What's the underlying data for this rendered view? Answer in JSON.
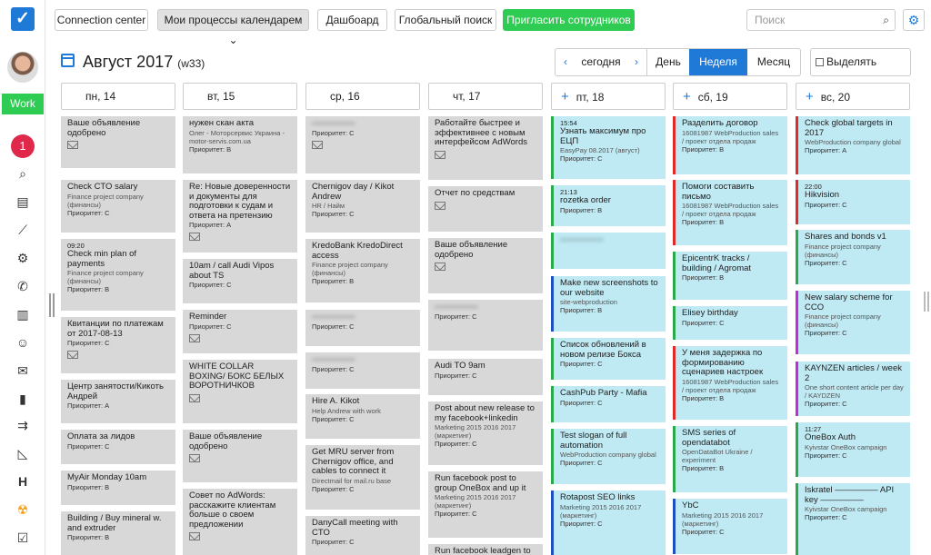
{
  "nav": {
    "work_label": "Work",
    "notifications": "1",
    "icons": [
      "search-icon",
      "calendar-icon",
      "chart-icon",
      "settings-icon",
      "phone-icon",
      "barcode-icon",
      "users-icon",
      "mail-icon",
      "document-icon",
      "flow-icon",
      "triangle-icon",
      "header-icon",
      "nuclear-icon",
      "task-icon"
    ]
  },
  "topbar": {
    "b1": "Connection center",
    "b2": "Мои процессы календарем ⌄",
    "b3": "Дашбоард",
    "b4": "Глобальный поиск",
    "b5": "Пригласить сотрудников",
    "search_placeholder": "Поиск"
  },
  "header": {
    "month": "Август 2017",
    "week": "(w33)",
    "today": "сегодня",
    "day": "День",
    "week_btn": "Неделя",
    "month_btn": "Месяц",
    "show_tasks": "Выделять задачи"
  },
  "days": [
    {
      "label": "пн, 14"
    },
    {
      "label": "вт, 15"
    },
    {
      "label": "ср, 16"
    },
    {
      "label": "чт, 17"
    },
    {
      "label": "пт, 18"
    },
    {
      "label": "сб, 19"
    },
    {
      "label": "вс, 20"
    }
  ],
  "colors": {
    "accent": "#1e7ad6",
    "green": "#2ecc52",
    "card_grey": "#d8d8d8",
    "card_blue": "#bfe9f3"
  },
  "events": [
    {
      "d": 0,
      "title": "Ваше объявление одобрено",
      "sub": "",
      "pri": "",
      "mail": true
    },
    {
      "d": 0,
      "title": "Check CTO salary",
      "sub": "Finance project company (финансы)",
      "pri": "Приоритет: С"
    },
    {
      "d": 0,
      "time": "09:20",
      "title": "Check min plan of payments",
      "sub": "Finance project company (финансы)",
      "pri": "Приоритет: В"
    },
    {
      "d": 0,
      "title": "Квитанции по платежам от 2017-08-13",
      "sub": "",
      "pri": "Приоритет: С",
      "mail": true
    },
    {
      "d": 0,
      "title": "Центр занятости/Кикоть Андрей",
      "sub": "",
      "pri": "Приоритет: А"
    },
    {
      "d": 0,
      "title": "Оплата за лидов",
      "sub": "",
      "pri": "Приоритет: С"
    },
    {
      "d": 0,
      "title": "MyAir Monday 10am",
      "sub": "",
      "pri": "Приоритет: В"
    },
    {
      "d": 0,
      "title": "Building / Buy mineral w. and extruder",
      "sub": "",
      "pri": "Приоритет: В"
    },
    {
      "d": 1,
      "title": "нужен скан акта",
      "sub": "Олег - Моторсервис Украина - motor-servis.com.ua",
      "pri": "Приоритет: В"
    },
    {
      "d": 1,
      "title": "Re: Новые доверенности и документы для подготовки к судам и ответа на претензию",
      "sub": "",
      "pri": "Приоритет: А",
      "mail": true
    },
    {
      "d": 1,
      "title": "10am / call Audi Vipos about TS",
      "sub": "",
      "pri": "Приоритет: С"
    },
    {
      "d": 1,
      "title": "Reminder",
      "sub": "",
      "pri": "Приоритет: С",
      "mail": true
    },
    {
      "d": 1,
      "title": "WHITE COLLAR BOXING/ БОКС БЕЛЫХ ВОРОТНИЧКОВ",
      "sub": "",
      "pri": "",
      "mail": true
    },
    {
      "d": 1,
      "title": "Ваше объявление одобрено",
      "sub": "",
      "pri": "",
      "mail": true
    },
    {
      "d": 1,
      "title": "Совет по AdWords: расскажите клиентам больше о своем предложении",
      "sub": "",
      "pri": "",
      "mail": true
    },
    {
      "d": 2,
      "blur": true,
      "title": "—————",
      "sub": "",
      "pri": "Приоритет: С",
      "mail": true
    },
    {
      "d": 2,
      "title": "Chernigov day / Kikot Andrew",
      "sub": "HR / Найм",
      "pri": "Приоритет: С"
    },
    {
      "d": 2,
      "title": "KredoBank KredoDirect access",
      "sub": "Finance project company (финансы)",
      "pri": "Приоритет: В"
    },
    {
      "d": 2,
      "blur": true,
      "title": "—————",
      "sub": "",
      "pri": "Приоритет: С"
    },
    {
      "d": 2,
      "blur": true,
      "title": "—————",
      "sub": "",
      "pri": "Приоритет: С"
    },
    {
      "d": 2,
      "title": "Hire A. Kikot",
      "sub": "Help Andrew with work",
      "pri": "Приоритет: С"
    },
    {
      "d": 2,
      "title": "Get MRU server from Chernigov office, and cables to connect it",
      "sub": "Directmail for mail.ru base",
      "pri": "Приоритет: С"
    },
    {
      "d": 2,
      "title": "DanyCall meeting with CTO",
      "sub": "",
      "pri": "Приоритет: С"
    },
    {
      "d": 3,
      "title": "Работайте быстрее и эффективнее с новым интерфейсом AdWords",
      "sub": "",
      "pri": "",
      "mail": true
    },
    {
      "d": 3,
      "title": "Отчет по средствам",
      "sub": "",
      "pri": "",
      "mail": true
    },
    {
      "d": 3,
      "title": "Ваше объявление одобрено",
      "sub": "",
      "pri": "",
      "mail": true
    },
    {
      "d": 3,
      "blur": true,
      "title": "—————",
      "sub": "",
      "pri": "Приоритет: С"
    },
    {
      "d": 3,
      "title": "Audi TO 9am",
      "sub": "",
      "pri": "Приоритет: С"
    },
    {
      "d": 3,
      "title": "Post about new release to my facebook+linkedin",
      "sub": "Marketing 2015 2016 2017 (маркетинг)",
      "pri": "Приоритет: С"
    },
    {
      "d": 3,
      "title": "Run facebook post to group OneBox and up it",
      "sub": "Marketing 2015 2016 2017 (маркетинг)",
      "pri": "Приоритет: С"
    },
    {
      "d": 3,
      "title": "Run facebook leadgen to",
      "sub": "",
      "pri": ""
    },
    {
      "d": 4,
      "c": "g",
      "time": "15:54",
      "title": "Узнать максимум про ЕЦП",
      "sub": "EasyPay 08.2017 (август)",
      "pri": "Приоритет: С"
    },
    {
      "d": 4,
      "c": "g",
      "time": "21:13",
      "title": "rozetka order",
      "sub": "",
      "pri": "Приоритет: В"
    },
    {
      "d": 4,
      "c": "g",
      "blur": true,
      "title": "—————",
      "sub": "",
      "pri": ""
    },
    {
      "d": 4,
      "c": "b",
      "title": "Make new screenshots to our website",
      "sub": "site-webproduction",
      "pri": "Приоритет: В"
    },
    {
      "d": 4,
      "c": "g",
      "title": "Список обновлений в новом релизе Бокса",
      "sub": "",
      "pri": "Приоритет: С"
    },
    {
      "d": 4,
      "c": "g",
      "title": "CashPub Party - Mafia",
      "sub": "",
      "pri": "Приоритет: С"
    },
    {
      "d": 4,
      "c": "g",
      "title": "Test slogan of full automation",
      "sub": "WebProduction company global",
      "pri": "Приоритет: С"
    },
    {
      "d": 4,
      "c": "b",
      "title": "Rotapost SEO links",
      "sub": "Marketing 2015 2016 2017 (маркетинг)",
      "pri": "Приоритет: С"
    },
    {
      "d": 5,
      "c": "r",
      "title": "Разделить договор",
      "sub": "16081987 WebProduction sales / проект отдела продаж",
      "pri": "Приоритет: В"
    },
    {
      "d": 5,
      "c": "r",
      "title": "Помоги составить письмо",
      "sub": "16081987 WebProduction sales / проект отдела продаж",
      "pri": "Приоритет: В"
    },
    {
      "d": 5,
      "c": "g",
      "title": "EpicentrK tracks / building / Agromat",
      "sub": "",
      "pri": "Приоритет: В"
    },
    {
      "d": 5,
      "c": "g",
      "title": "Elisey birthday",
      "sub": "",
      "pri": "Приоритет: С"
    },
    {
      "d": 5,
      "c": "r",
      "title": "У меня задержка по формированию сценариев настроек",
      "sub": "16081987 WebProduction sales / проект отдела продаж",
      "pri": "Приоритет: В"
    },
    {
      "d": 5,
      "c": "g",
      "title": "SMS series of opendatabot",
      "sub": "OpenDataBot Ukraine / experiment",
      "pri": "Приоритет: В"
    },
    {
      "d": 5,
      "c": "b",
      "title": "YbC",
      "sub": "Marketing 2015 2016 2017 (маркетинг)",
      "pri": "Приоритет: С"
    },
    {
      "d": 6,
      "c": "r",
      "title": "Check global targets in 2017",
      "sub": "WebProduction company global",
      "pri": "Приоритет: А"
    },
    {
      "d": 6,
      "c": "r",
      "time": "22:00",
      "title": "Hikvision",
      "sub": "",
      "pri": "Приоритет: С"
    },
    {
      "d": 6,
      "c": "g",
      "title": "Shares and bonds v1",
      "sub": "Finance project company (финансы)",
      "pri": "Приоритет: С"
    },
    {
      "d": 6,
      "c": "m",
      "title": "New salary scheme for CCO",
      "sub": "Finance project company (финансы)",
      "pri": "Приоритет: С"
    },
    {
      "d": 6,
      "c": "m",
      "title": "KAYNZEN articles / week 2",
      "sub": "One short content article per day / KAYDZEN",
      "pri": "Приоритет: С"
    },
    {
      "d": 6,
      "c": "g",
      "time": "11:27",
      "title": "OneBox Auth",
      "sub": "Kyivstar OneBox campaign",
      "pri": "Приоритет: С"
    },
    {
      "d": 6,
      "c": "g",
      "title": "Iskratel ————— API key —————",
      "sub": "Kyivstar OneBox campaign",
      "pri": "Приоритет: С"
    }
  ]
}
